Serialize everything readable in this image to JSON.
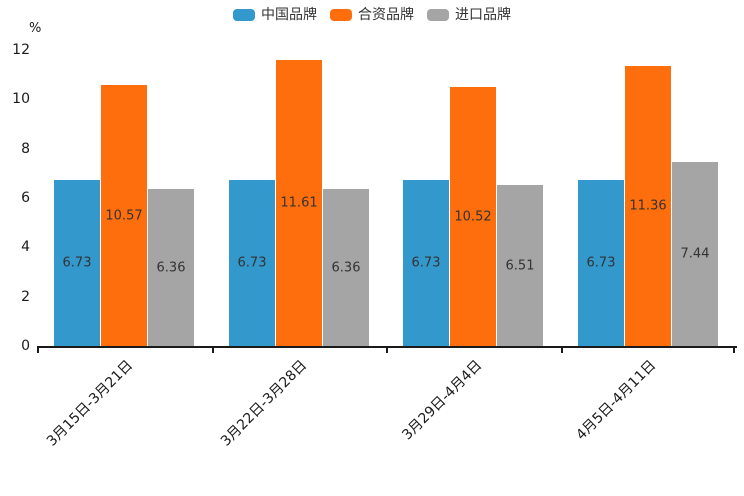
{
  "chart_data": {
    "type": "bar",
    "title": "",
    "unit_label": "%",
    "categories": [
      "3月15日-3月21日",
      "3月22日-3月28日",
      "3月29日-4月4日",
      "4月5日-4月11日"
    ],
    "series": [
      {
        "key": "china-brand",
        "name": "中国品牌",
        "color": "#3398CC",
        "values": [
          6.73,
          6.73,
          6.73,
          6.73
        ]
      },
      {
        "key": "jv-brand",
        "name": "合资品牌",
        "color": "#FF6E0C",
        "values": [
          10.57,
          11.61,
          10.52,
          11.36
        ]
      },
      {
        "key": "import-brand",
        "name": "进口品牌",
        "color": "#A5A5A5",
        "values": [
          6.36,
          6.36,
          6.51,
          7.44
        ]
      }
    ],
    "y_ticks": [
      0,
      2,
      4,
      6,
      8,
      10,
      12
    ],
    "ylim": [
      0,
      12
    ],
    "grid": false,
    "legend_position": "top",
    "bar_labels_visible": true
  },
  "colors": {
    "axis": "#1A1A1A",
    "tick_label": "#1A1A1A",
    "bar_label": "#333333",
    "background": "#FFFFFF"
  }
}
